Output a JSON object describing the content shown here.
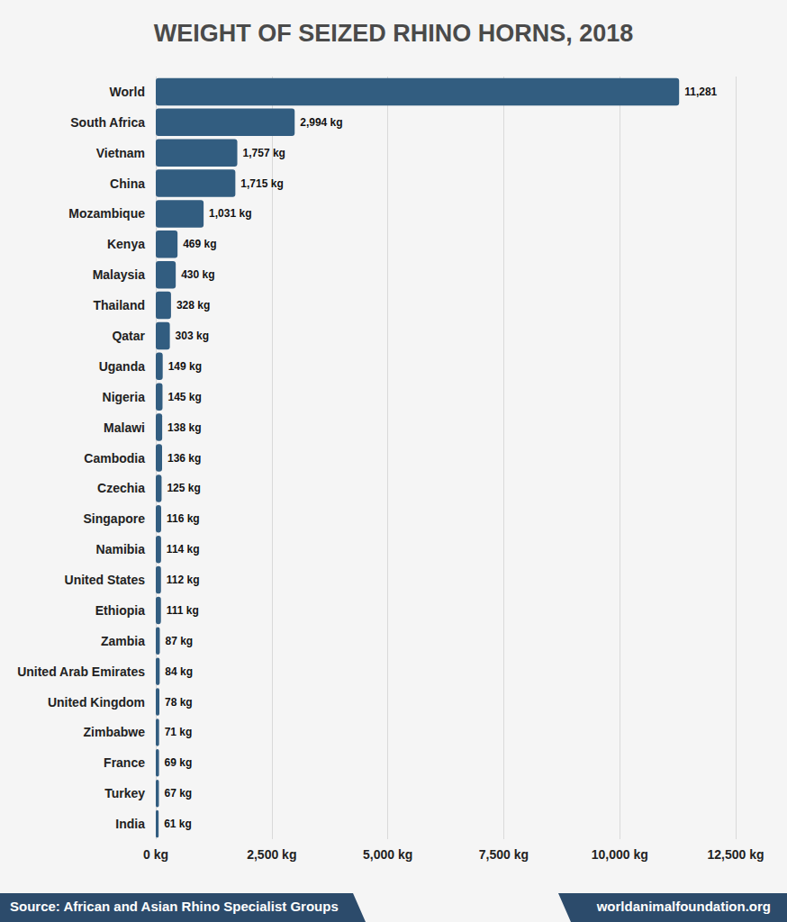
{
  "chart_data": {
    "type": "bar",
    "title": "WEIGHT OF SEIZED RHINO HORNS, 2018",
    "orientation": "horizontal",
    "categories": [
      "World",
      "South Africa",
      "Vietnam",
      "China",
      "Mozambique",
      "Kenya",
      "Malaysia",
      "Thailand",
      "Qatar",
      "Uganda",
      "Nigeria",
      "Malawi",
      "Cambodia",
      "Czechia",
      "Singapore",
      "Namibia",
      "United States",
      "Ethiopia",
      "Zambia",
      "United Arab Emirates",
      "United Kingdom",
      "Zimbabwe",
      "France",
      "Turkey",
      "India"
    ],
    "values": [
      11281,
      2994,
      1757,
      1715,
      1031,
      469,
      430,
      328,
      303,
      149,
      145,
      138,
      136,
      125,
      116,
      114,
      112,
      111,
      87,
      84,
      78,
      71,
      69,
      67,
      61
    ],
    "value_labels": [
      "11,281",
      "2,994 kg",
      "1,757 kg",
      "1,715 kg",
      "1,031 kg",
      "469 kg",
      "430 kg",
      "328 kg",
      "303 kg",
      "149 kg",
      "145 kg",
      "138 kg",
      "136 kg",
      "125 kg",
      "116 kg",
      "114 kg",
      "112 kg",
      "111 kg",
      "87 kg",
      "84 kg",
      "78 kg",
      "71 kg",
      "69 kg",
      "67 kg",
      "61 kg"
    ],
    "color": "#325d80",
    "xlim": [
      0,
      12500
    ],
    "xticks": [
      {
        "value": 0,
        "label": "0 kg"
      },
      {
        "value": 2500,
        "label": "2,500 kg"
      },
      {
        "value": 5000,
        "label": "5,000 kg"
      },
      {
        "value": 7500,
        "label": "7,500 kg"
      },
      {
        "value": 10000,
        "label": "10,000 kg"
      },
      {
        "value": 12500,
        "label": "12,500 kg"
      }
    ],
    "grid": true,
    "data_labels": true,
    "annotations": [
      "Source: African and Asian Rhino Specialist Groups",
      "worldanimalfoundation.org"
    ]
  }
}
